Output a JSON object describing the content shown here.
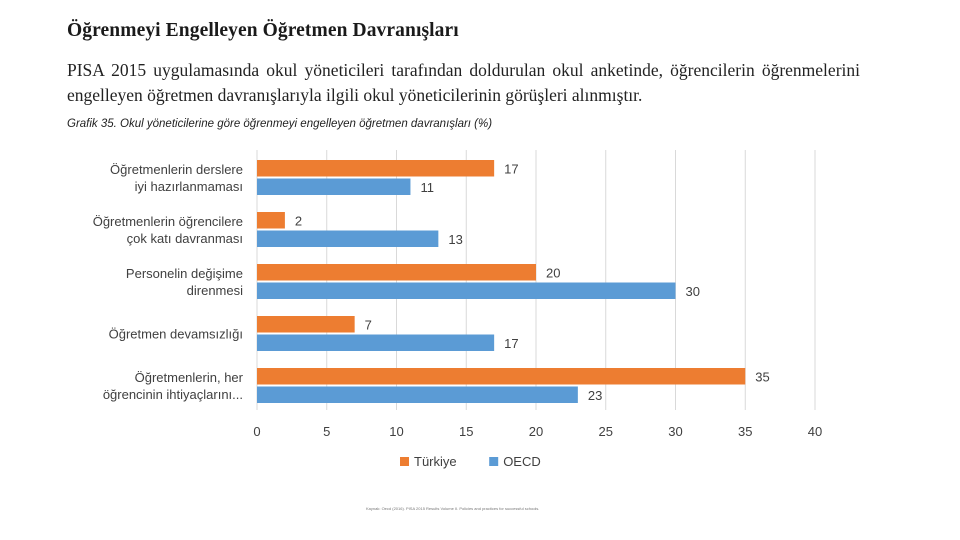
{
  "page": {
    "title": "Öğrenmeyi Engelleyen Öğretmen Davranışları",
    "intro": "PISA 2015 uygulamasında okul yöneticileri tarafından doldurulan okul anketinde, öğrencilerin öğrenmelerini engelleyen öğretmen davranışlarıyla ilgili okul yöneticilerinin görüşleri alınmıştır.",
    "chart_caption": "Grafik 35. Okul yöneticilerine göre öğrenmeyi engelleyen öğretmen davranışları (%)",
    "footer_note": "Kaynak: Oecd (2016). PISA 2015 Results Volume II. Policies and practices for successful schools."
  },
  "chart_data": {
    "type": "bar",
    "orientation": "horizontal",
    "title": "Grafik 35. Okul yöneticilerine göre öğrenmeyi engelleyen öğretmen davranışları (%)",
    "xlabel": "",
    "ylabel": "",
    "xlim": [
      0,
      40
    ],
    "xticks": [
      0,
      5,
      10,
      15,
      20,
      25,
      30,
      35,
      40
    ],
    "grid": true,
    "legend_position": "bottom",
    "categories": [
      [
        "Öğretmenlerin derslere",
        "iyi hazırlanmaması"
      ],
      [
        "Öğretmenlerin öğrencilere",
        "çok katı davranması"
      ],
      [
        "Personelin değişime",
        "direnmesi"
      ],
      [
        "Öğretmen devamsızlığı"
      ],
      [
        "Öğretmenlerin, her",
        "öğrencinin ihtiyaçlarını..."
      ]
    ],
    "series": [
      {
        "name": "Türkiye",
        "color": "#ED7D31",
        "values": [
          17,
          2,
          20,
          7,
          35
        ]
      },
      {
        "name": "OECD",
        "color": "#5B9BD5",
        "values": [
          11,
          13,
          30,
          17,
          23
        ]
      }
    ]
  }
}
